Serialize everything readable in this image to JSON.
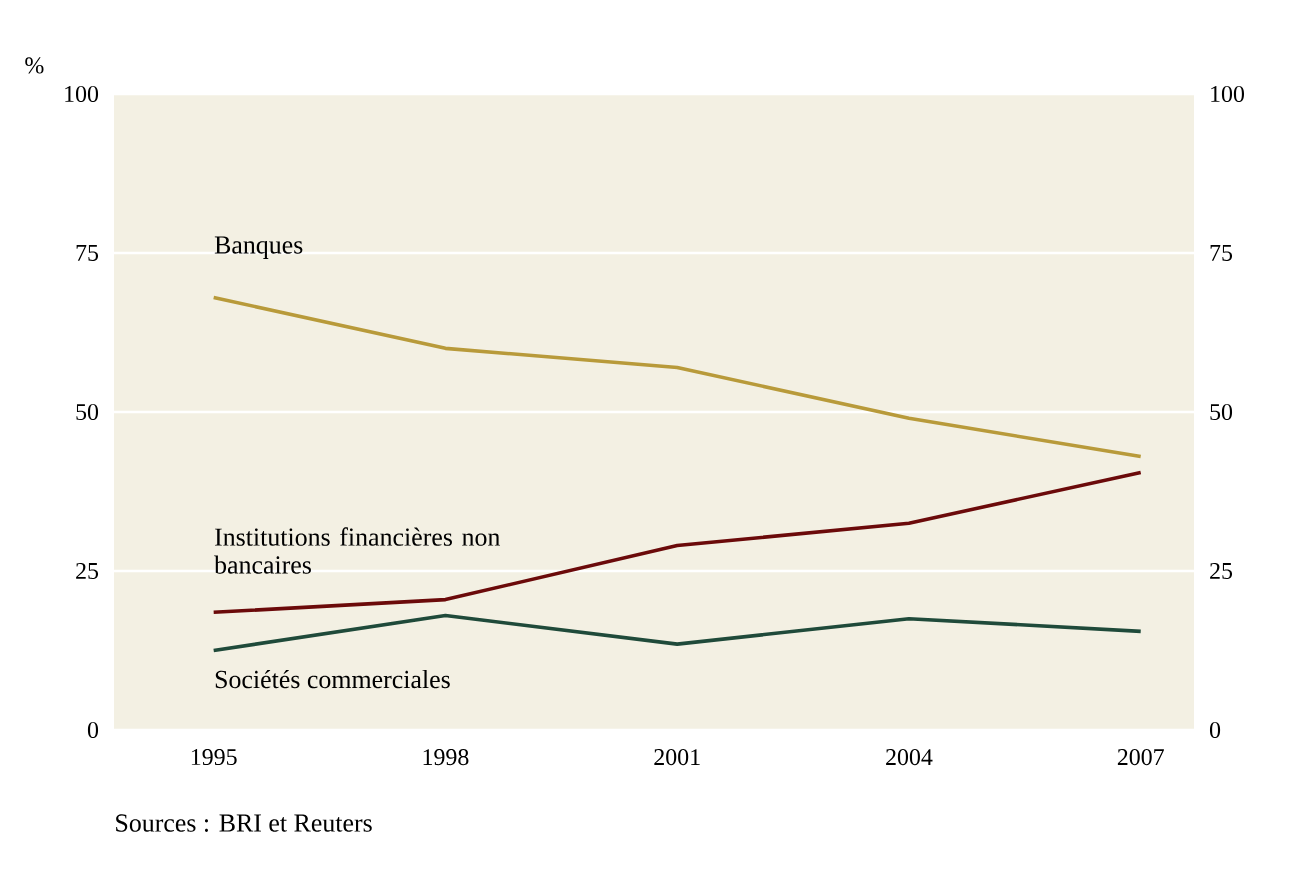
{
  "chart_data": {
    "type": "line",
    "ylabel": "%",
    "categories": [
      "1995",
      "1998",
      "2001",
      "2004",
      "2007"
    ],
    "series": [
      {
        "name": "Banques",
        "color": "#b89a3a",
        "values": [
          68,
          60,
          57,
          49,
          43
        ]
      },
      {
        "name": "Institutions financières non bancaires",
        "color": "#6b0a0a",
        "values": [
          18.5,
          20.5,
          29,
          32.5,
          40.5
        ]
      },
      {
        "name": "Sociétés commerciales",
        "color": "#1f4a3a",
        "values": [
          12.5,
          18,
          13.5,
          17.5,
          15.5
        ]
      }
    ],
    "ylim": [
      0,
      100
    ],
    "yticks": [
      0,
      25,
      50,
      75,
      100
    ],
    "y2lim": [
      0,
      100
    ],
    "y2ticks": [
      0,
      25,
      50,
      75,
      100
    ],
    "grid": "y",
    "legend": false,
    "marker": "none",
    "line_style": "solid",
    "annotations": [
      "Sources : BRI et Reuters"
    ]
  }
}
